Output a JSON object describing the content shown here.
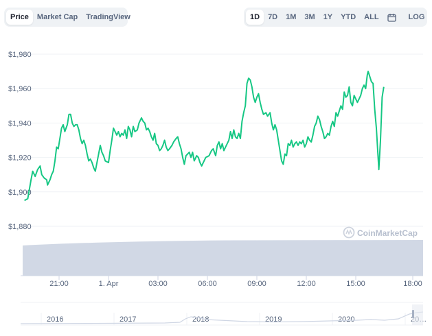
{
  "chart_tabs": [
    {
      "label": "Price",
      "active": true
    },
    {
      "label": "Market Cap",
      "active": false
    },
    {
      "label": "TradingView",
      "active": false
    }
  ],
  "range_buttons": [
    {
      "label": "1D",
      "active": true
    },
    {
      "label": "7D",
      "active": false
    },
    {
      "label": "1M",
      "active": false
    },
    {
      "label": "3M",
      "active": false
    },
    {
      "label": "1Y",
      "active": false
    },
    {
      "label": "YTD",
      "active": false
    },
    {
      "label": "ALL",
      "active": false
    }
  ],
  "calendar_icon": "calendar-icon",
  "log_label": "LOG",
  "watermark": "CoinMarketCap",
  "colors": {
    "line": "#16c784",
    "volume_fill": "#cfd6e4",
    "grid": "#eff2f5",
    "text": "#58667e",
    "navigator_line": "#cfd6e4"
  },
  "chart_data": {
    "type": "line",
    "ylim": [
      1870,
      1985
    ],
    "y_ticks": [
      {
        "label": "$1,980",
        "value": 1980
      },
      {
        "label": "$1,960",
        "value": 1960
      },
      {
        "label": "$1,940",
        "value": 1940
      },
      {
        "label": "$1,920",
        "value": 1920
      },
      {
        "label": "$1,900",
        "value": 1900
      },
      {
        "label": "$1,880",
        "value": 1880
      }
    ],
    "x_ticks": [
      {
        "label": "21:00",
        "hour": 2
      },
      {
        "label": "1. Apr",
        "hour": 5
      },
      {
        "label": "03:00",
        "hour": 8
      },
      {
        "label": "06:00",
        "hour": 11
      },
      {
        "label": "09:00",
        "hour": 14
      },
      {
        "label": "12:00",
        "hour": 17
      },
      {
        "label": "15:00",
        "hour": 20
      },
      {
        "label": "18:00",
        "hour": 23
      }
    ],
    "xlim": [
      -0.1,
      23.6
    ],
    "series": [
      {
        "values": [
          [
            -0.1,
            1895
          ],
          [
            0.1,
            1896
          ],
          [
            0.3,
            1907
          ],
          [
            0.4,
            1912
          ],
          [
            0.55,
            1909
          ],
          [
            0.7,
            1913
          ],
          [
            0.85,
            1915
          ],
          [
            0.95,
            1910
          ],
          [
            1.1,
            1908
          ],
          [
            1.25,
            1907
          ],
          [
            1.3,
            1904
          ],
          [
            1.45,
            1907
          ],
          [
            1.55,
            1910
          ],
          [
            1.65,
            1912
          ],
          [
            1.75,
            1918
          ],
          [
            1.85,
            1926
          ],
          [
            1.95,
            1925
          ],
          [
            2.05,
            1931
          ],
          [
            2.15,
            1937
          ],
          [
            2.25,
            1939
          ],
          [
            2.35,
            1935
          ],
          [
            2.5,
            1939
          ],
          [
            2.6,
            1945
          ],
          [
            2.7,
            1945
          ],
          [
            2.8,
            1940
          ],
          [
            2.9,
            1938
          ],
          [
            3.0,
            1939
          ],
          [
            3.1,
            1939
          ],
          [
            3.2,
            1936
          ],
          [
            3.3,
            1931
          ],
          [
            3.4,
            1928
          ],
          [
            3.5,
            1930
          ],
          [
            3.6,
            1927
          ],
          [
            3.7,
            1922
          ],
          [
            3.8,
            1918
          ],
          [
            3.9,
            1919
          ],
          [
            4.0,
            1917
          ],
          [
            4.1,
            1914
          ],
          [
            4.2,
            1912
          ],
          [
            4.3,
            1917
          ],
          [
            4.4,
            1922
          ],
          [
            4.5,
            1927
          ],
          [
            4.6,
            1923
          ],
          [
            4.7,
            1921
          ],
          [
            4.8,
            1918
          ],
          [
            5.0,
            1917
          ],
          [
            5.1,
            1924
          ],
          [
            5.2,
            1930
          ],
          [
            5.3,
            1937
          ],
          [
            5.4,
            1935
          ],
          [
            5.5,
            1933
          ],
          [
            5.6,
            1935
          ],
          [
            5.7,
            1932
          ],
          [
            5.8,
            1934
          ],
          [
            5.9,
            1933
          ],
          [
            6.0,
            1936
          ],
          [
            6.1,
            1931
          ],
          [
            6.2,
            1938
          ],
          [
            6.3,
            1936
          ],
          [
            6.4,
            1932
          ],
          [
            6.5,
            1938
          ],
          [
            6.6,
            1935
          ],
          [
            6.75,
            1936
          ],
          [
            6.85,
            1940
          ],
          [
            7.0,
            1943
          ],
          [
            7.1,
            1941
          ],
          [
            7.2,
            1940
          ],
          [
            7.3,
            1936
          ],
          [
            7.4,
            1937
          ],
          [
            7.5,
            1935
          ],
          [
            7.6,
            1932
          ],
          [
            7.7,
            1930
          ],
          [
            7.8,
            1934
          ],
          [
            7.9,
            1928
          ],
          [
            8.0,
            1927
          ],
          [
            8.1,
            1924
          ],
          [
            8.2,
            1925
          ],
          [
            8.3,
            1927
          ],
          [
            8.4,
            1930
          ],
          [
            8.5,
            1926
          ],
          [
            8.6,
            1924
          ],
          [
            8.7,
            1925
          ],
          [
            8.85,
            1927
          ],
          [
            8.95,
            1929
          ],
          [
            9.1,
            1931
          ],
          [
            9.2,
            1932
          ],
          [
            9.3,
            1928
          ],
          [
            9.4,
            1925
          ],
          [
            9.5,
            1920
          ],
          [
            9.6,
            1916
          ],
          [
            9.7,
            1921
          ],
          [
            9.8,
            1922
          ],
          [
            9.9,
            1923
          ],
          [
            10.0,
            1920
          ],
          [
            10.1,
            1923
          ],
          [
            10.2,
            1918
          ],
          [
            10.35,
            1921
          ],
          [
            10.45,
            1920
          ],
          [
            10.55,
            1917
          ],
          [
            10.65,
            1915
          ],
          [
            10.8,
            1918
          ],
          [
            10.9,
            1920
          ],
          [
            11.1,
            1921
          ],
          [
            11.25,
            1924
          ],
          [
            11.35,
            1925
          ],
          [
            11.5,
            1921
          ],
          [
            11.6,
            1927
          ],
          [
            11.7,
            1929
          ],
          [
            11.8,
            1925
          ],
          [
            11.9,
            1928
          ],
          [
            12.0,
            1924
          ],
          [
            12.1,
            1926
          ],
          [
            12.2,
            1928
          ],
          [
            12.3,
            1930
          ],
          [
            12.4,
            1935
          ],
          [
            12.5,
            1931
          ],
          [
            12.6,
            1936
          ],
          [
            12.7,
            1932
          ],
          [
            12.8,
            1931
          ],
          [
            12.9,
            1934
          ],
          [
            13.0,
            1931
          ],
          [
            13.1,
            1941
          ],
          [
            13.2,
            1946
          ],
          [
            13.3,
            1950
          ],
          [
            13.4,
            1963
          ],
          [
            13.5,
            1966
          ],
          [
            13.6,
            1965
          ],
          [
            13.7,
            1961
          ],
          [
            13.8,
            1955
          ],
          [
            13.9,
            1952
          ],
          [
            14.0,
            1955
          ],
          [
            14.1,
            1957
          ],
          [
            14.2,
            1952
          ],
          [
            14.3,
            1948
          ],
          [
            14.4,
            1945
          ],
          [
            14.55,
            1946
          ],
          [
            14.65,
            1944
          ],
          [
            14.8,
            1946
          ],
          [
            14.9,
            1940
          ],
          [
            15.0,
            1936
          ],
          [
            15.1,
            1939
          ],
          [
            15.2,
            1936
          ],
          [
            15.3,
            1930
          ],
          [
            15.4,
            1924
          ],
          [
            15.5,
            1918
          ],
          [
            15.6,
            1916
          ],
          [
            15.7,
            1922
          ],
          [
            15.8,
            1921
          ],
          [
            15.9,
            1928
          ],
          [
            16.0,
            1927
          ],
          [
            16.1,
            1930
          ],
          [
            16.2,
            1926
          ],
          [
            16.3,
            1928
          ],
          [
            16.4,
            1929
          ],
          [
            16.5,
            1927
          ],
          [
            16.6,
            1929
          ],
          [
            16.7,
            1928
          ],
          [
            16.8,
            1930
          ],
          [
            16.9,
            1926
          ],
          [
            17.0,
            1928
          ],
          [
            17.1,
            1932
          ],
          [
            17.2,
            1930
          ],
          [
            17.3,
            1929
          ],
          [
            17.4,
            1933
          ],
          [
            17.5,
            1938
          ],
          [
            17.6,
            1940
          ],
          [
            17.7,
            1944
          ],
          [
            17.8,
            1942
          ],
          [
            17.9,
            1938
          ],
          [
            18.0,
            1935
          ],
          [
            18.1,
            1931
          ],
          [
            18.2,
            1932
          ],
          [
            18.3,
            1934
          ],
          [
            18.4,
            1933
          ],
          [
            18.5,
            1938
          ],
          [
            18.6,
            1941
          ],
          [
            18.7,
            1938
          ],
          [
            18.8,
            1946
          ],
          [
            18.9,
            1944
          ],
          [
            19.0,
            1947
          ],
          [
            19.1,
            1950
          ],
          [
            19.2,
            1948
          ],
          [
            19.3,
            1958
          ],
          [
            19.4,
            1955
          ],
          [
            19.5,
            1956
          ],
          [
            19.6,
            1961
          ],
          [
            19.7,
            1952
          ],
          [
            19.8,
            1950
          ],
          [
            19.9,
            1956
          ],
          [
            20.0,
            1954
          ],
          [
            20.1,
            1952
          ],
          [
            20.2,
            1954
          ],
          [
            20.3,
            1956
          ],
          [
            20.4,
            1960
          ],
          [
            20.5,
            1962
          ],
          [
            20.6,
            1960
          ],
          [
            20.7,
            1968
          ],
          [
            20.75,
            1970
          ],
          [
            20.85,
            1967
          ],
          [
            20.95,
            1964
          ],
          [
            21.05,
            1963
          ],
          [
            21.15,
            1948
          ],
          [
            21.25,
            1937
          ],
          [
            21.35,
            1921
          ],
          [
            21.4,
            1913
          ],
          [
            21.5,
            1930
          ],
          [
            21.6,
            1955
          ],
          [
            21.7,
            1961
          ]
        ]
      }
    ],
    "volume_label": "",
    "navigator": {
      "years": [
        "2016",
        "2017",
        "2018",
        "2019",
        "2020",
        "20…"
      ]
    }
  }
}
